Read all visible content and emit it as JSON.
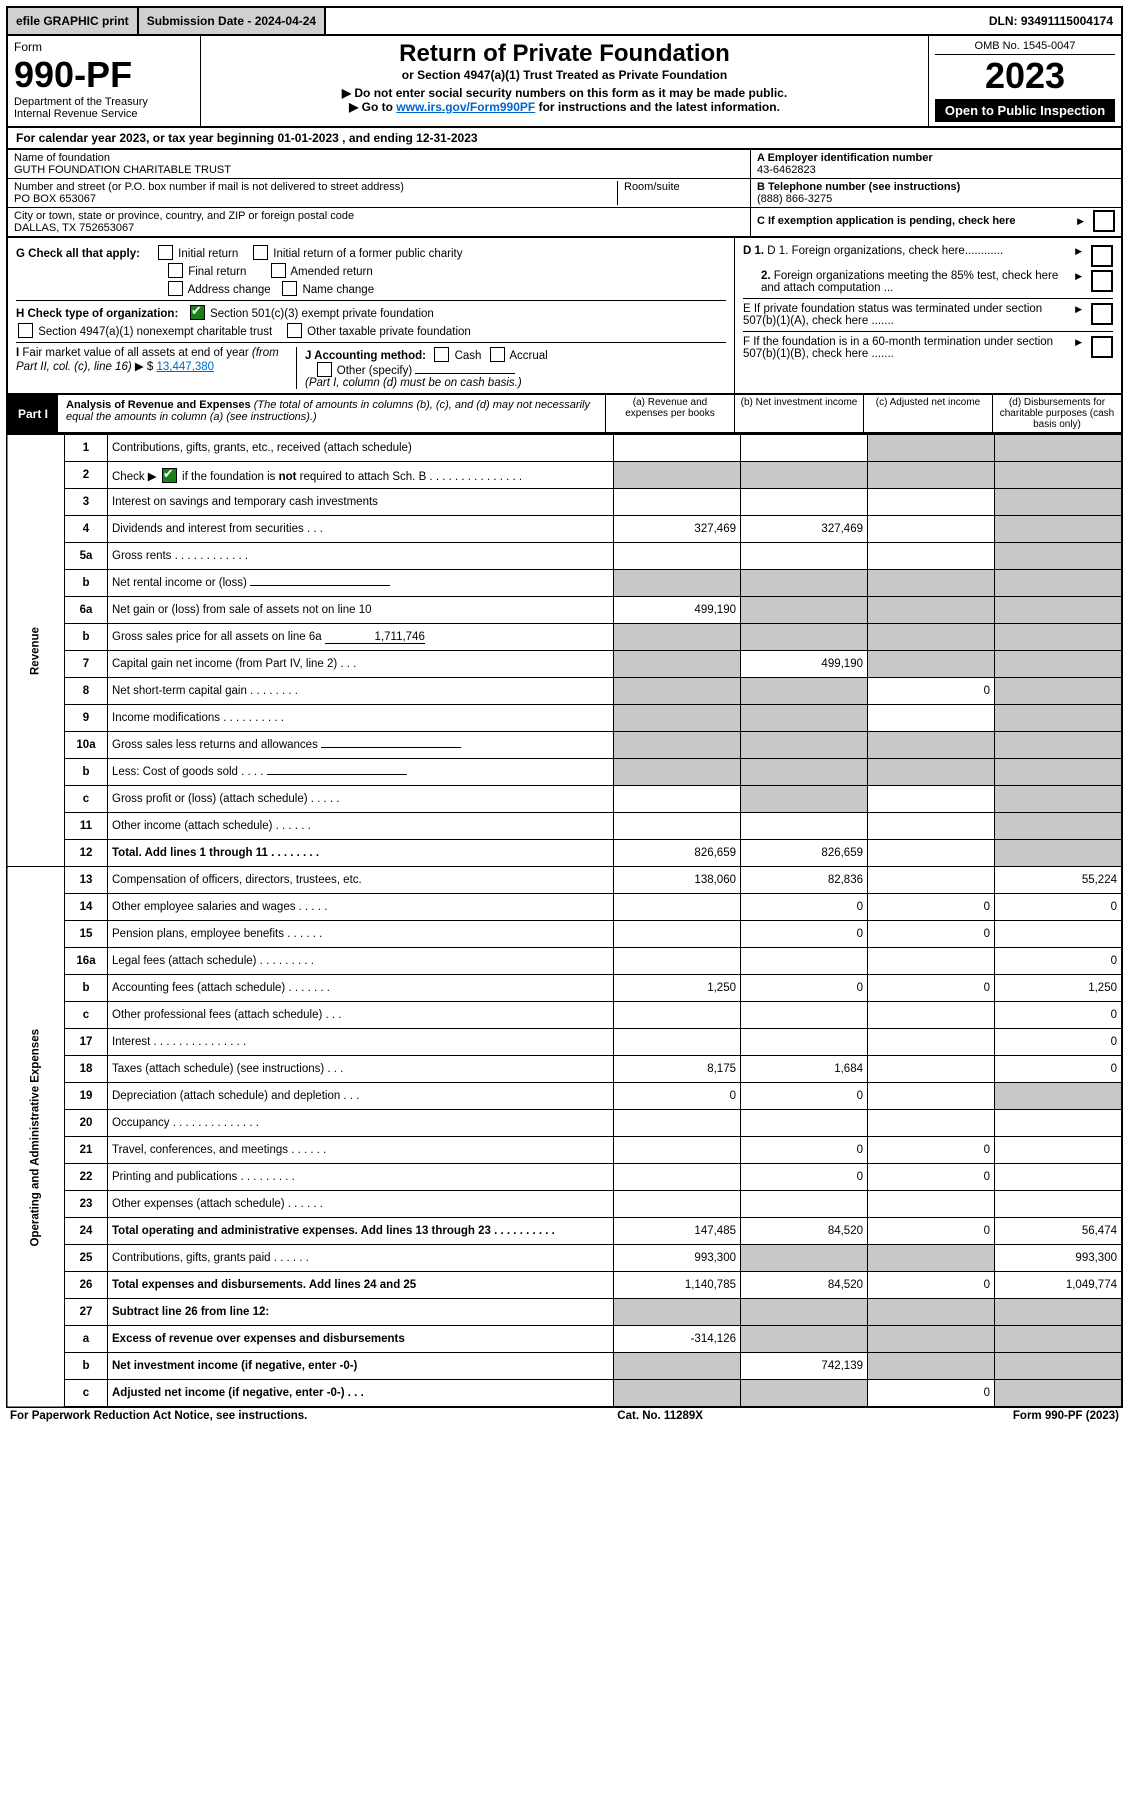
{
  "topbar": {
    "efile": "efile GRAPHIC print",
    "submission_label": "Submission Date - 2024-04-24",
    "dln": "DLN: 93491115004174"
  },
  "header": {
    "form_word": "Form",
    "form_no": "990-PF",
    "dept": "Department of the Treasury",
    "irs": "Internal Revenue Service",
    "title": "Return of Private Foundation",
    "subtitle": "or Section 4947(a)(1) Trust Treated as Private Foundation",
    "note1": "▶ Do not enter social security numbers on this form as it may be made public.",
    "note2_pre": "▶ Go to ",
    "note2_link": "www.irs.gov/Form990PF",
    "note2_post": " for instructions and the latest information.",
    "omb": "OMB No. 1545-0047",
    "year": "2023",
    "open": "Open to Public Inspection"
  },
  "calendar_line": "For calendar year 2023, or tax year beginning 01-01-2023                                    , and ending 12-31-2023",
  "id": {
    "name_lbl": "Name of foundation",
    "name": "GUTH FOUNDATION CHARITABLE TRUST",
    "addr_lbl": "Number and street (or P.O. box number if mail is not delivered to street address)",
    "room_lbl": "Room/suite",
    "addr": "PO BOX 653067",
    "city_lbl": "City or town, state or province, country, and ZIP or foreign postal code",
    "city": "DALLAS, TX  752653067",
    "a_lbl": "A Employer identification number",
    "a_val": "43-6462823",
    "b_lbl": "B Telephone number (see instructions)",
    "b_val": "(888) 866-3275",
    "c_lbl": "C If exemption application is pending, check here"
  },
  "opts": {
    "g": "G Check all that apply:",
    "g1": "Initial return",
    "g2": "Initial return of a former public charity",
    "g3": "Final return",
    "g4": "Amended return",
    "g5": "Address change",
    "g6": "Name change",
    "h": "H Check type of organization:",
    "h1": "Section 501(c)(3) exempt private foundation",
    "h2": "Section 4947(a)(1) nonexempt charitable trust",
    "h3": "Other taxable private foundation",
    "i": "I Fair market value of all assets at end of year (from Part II, col. (c), line 16) ▶ $ ",
    "i_val": "13,447,380",
    "j": "J Accounting method:",
    "j1": "Cash",
    "j2": "Accrual",
    "j3": "Other (specify)",
    "j_note": "(Part I, column (d) must be on cash basis.)",
    "d1": "D 1. Foreign organizations, check here............",
    "d2": "2. Foreign organizations meeting the 85% test, check here and attach computation ...",
    "e": "E  If private foundation status was terminated under section 507(b)(1)(A), check here .......",
    "f": "F  If the foundation is in a 60-month termination under section 507(b)(1)(B), check here ......."
  },
  "part1": {
    "tag": "Part I",
    "title": "Analysis of Revenue and Expenses",
    "title_note": " (The total of amounts in columns (b), (c), and (d) may not necessarily equal the amounts in column (a) (see instructions).)",
    "col_a": "(a)   Revenue and expenses per books",
    "col_b": "(b)   Net investment income",
    "col_c": "(c)   Adjusted net income",
    "col_d": "(d)  Disbursements for charitable purposes (cash basis only)"
  },
  "side": {
    "rev": "Revenue",
    "exp": "Operating and Administrative Expenses"
  },
  "rows": [
    {
      "n": "1",
      "d": "Contributions, gifts, grants, etc., received (attach schedule)",
      "a": "",
      "b": "",
      "c": "S",
      "dcol": "S"
    },
    {
      "n": "2",
      "d": "Check ▶ ☑ if the foundation is not required to attach Sch. B   .   .   .   .   .   .   .   .   .   .   .   .   .   .   .",
      "a": "S",
      "b": "S",
      "c": "S",
      "dcol": "S",
      "check2": true
    },
    {
      "n": "3",
      "d": "Interest on savings and temporary cash investments",
      "a": "",
      "b": "",
      "c": "",
      "dcol": "S"
    },
    {
      "n": "4",
      "d": "Dividends and interest from securities    .    .    .",
      "a": "327,469",
      "b": "327,469",
      "c": "",
      "dcol": "S"
    },
    {
      "n": "5a",
      "d": "Gross rents    .    .    .    .    .    .    .    .    .    .    .    .",
      "a": "",
      "b": "",
      "c": "",
      "dcol": "S"
    },
    {
      "n": "b",
      "d": "Net rental income or (loss)  ",
      "a": "S",
      "b": "S",
      "c": "S",
      "dcol": "S",
      "inline": true
    },
    {
      "n": "6a",
      "d": "Net gain or (loss) from sale of assets not on line 10",
      "a": "499,190",
      "b": "S",
      "c": "S",
      "dcol": "S"
    },
    {
      "n": "b",
      "d": "Gross sales price for all assets on line 6a",
      "a": "S",
      "b": "S",
      "c": "S",
      "dcol": "S",
      "inline_val": "1,711,746"
    },
    {
      "n": "7",
      "d": "Capital gain net income (from Part IV, line 2)    .    .    .",
      "a": "S",
      "b": "499,190",
      "c": "S",
      "dcol": "S"
    },
    {
      "n": "8",
      "d": "Net short-term capital gain   .   .   .   .   .   .   .   .",
      "a": "S",
      "b": "S",
      "c": "0",
      "dcol": "S"
    },
    {
      "n": "9",
      "d": "Income modifications  .   .   .   .   .   .   .   .   .   .",
      "a": "S",
      "b": "S",
      "c": "",
      "dcol": "S"
    },
    {
      "n": "10a",
      "d": "Gross sales less returns and allowances",
      "a": "S",
      "b": "S",
      "c": "S",
      "dcol": "S",
      "inline": true
    },
    {
      "n": "b",
      "d": "Less: Cost of goods sold     .    .    .    .",
      "a": "S",
      "b": "S",
      "c": "S",
      "dcol": "S",
      "inline": true
    },
    {
      "n": "c",
      "d": "Gross profit or (loss) (attach schedule)    .    .    .    .    .",
      "a": "",
      "b": "S",
      "c": "",
      "dcol": "S"
    },
    {
      "n": "11",
      "d": "Other income (attach schedule)    .    .    .    .    .    .",
      "a": "",
      "b": "",
      "c": "",
      "dcol": "S"
    },
    {
      "n": "12",
      "d": "Total. Add lines 1 through 11   .   .   .   .   .   .   .   .",
      "a": "826,659",
      "b": "826,659",
      "c": "",
      "dcol": "S",
      "bold": true
    },
    {
      "n": "13",
      "d": "Compensation of officers, directors, trustees, etc.",
      "a": "138,060",
      "b": "82,836",
      "c": "",
      "dcol": "55,224"
    },
    {
      "n": "14",
      "d": "Other employee salaries and wages    .    .    .    .    .",
      "a": "",
      "b": "0",
      "c": "0",
      "dcol": "0"
    },
    {
      "n": "15",
      "d": "Pension plans, employee benefits   .   .   .   .   .   .",
      "a": "",
      "b": "0",
      "c": "0",
      "dcol": ""
    },
    {
      "n": "16a",
      "d": "Legal fees (attach schedule)  .   .   .   .   .   .   .   .   .",
      "a": "",
      "b": "",
      "c": "",
      "dcol": "0"
    },
    {
      "n": "b",
      "d": "Accounting fees (attach schedule)  .   .   .   .   .   .   .",
      "a": "1,250",
      "b": "0",
      "c": "0",
      "dcol": "1,250"
    },
    {
      "n": "c",
      "d": "Other professional fees (attach schedule)    .    .    .",
      "a": "",
      "b": "",
      "c": "",
      "dcol": "0"
    },
    {
      "n": "17",
      "d": "Interest  .   .   .   .   .   .   .   .   .   .   .   .   .   .   .",
      "a": "",
      "b": "",
      "c": "",
      "dcol": "0"
    },
    {
      "n": "18",
      "d": "Taxes (attach schedule) (see instructions)    .    .    .",
      "a": "8,175",
      "b": "1,684",
      "c": "",
      "dcol": "0"
    },
    {
      "n": "19",
      "d": "Depreciation (attach schedule) and depletion    .    .    .",
      "a": "0",
      "b": "0",
      "c": "",
      "dcol": "S"
    },
    {
      "n": "20",
      "d": "Occupancy  .   .   .   .   .   .   .   .   .   .   .   .   .   .",
      "a": "",
      "b": "",
      "c": "",
      "dcol": ""
    },
    {
      "n": "21",
      "d": "Travel, conferences, and meetings  .   .   .   .   .   .",
      "a": "",
      "b": "0",
      "c": "0",
      "dcol": ""
    },
    {
      "n": "22",
      "d": "Printing and publications  .   .   .   .   .   .   .   .   .",
      "a": "",
      "b": "0",
      "c": "0",
      "dcol": ""
    },
    {
      "n": "23",
      "d": "Other expenses (attach schedule)   .   .   .   .   .   .",
      "a": "",
      "b": "",
      "c": "",
      "dcol": ""
    },
    {
      "n": "24",
      "d": "Total operating and administrative expenses. Add lines 13 through 23  .   .   .   .   .   .   .   .   .   .",
      "a": "147,485",
      "b": "84,520",
      "c": "0",
      "dcol": "56,474",
      "bold": true
    },
    {
      "n": "25",
      "d": "Contributions, gifts, grants paid    .    .    .    .    .    .",
      "a": "993,300",
      "b": "S",
      "c": "S",
      "dcol": "993,300"
    },
    {
      "n": "26",
      "d": "Total expenses and disbursements. Add lines 24 and 25",
      "a": "1,140,785",
      "b": "84,520",
      "c": "0",
      "dcol": "1,049,774",
      "bold": true
    },
    {
      "n": "27",
      "d": "Subtract line 26 from line 12:",
      "a": "S",
      "b": "S",
      "c": "S",
      "dcol": "S",
      "bold": true
    },
    {
      "n": "a",
      "d": "Excess of revenue over expenses and disbursements",
      "a": "-314,126",
      "b": "S",
      "c": "S",
      "dcol": "S",
      "bold": true
    },
    {
      "n": "b",
      "d": "Net investment income (if negative, enter -0-)",
      "a": "S",
      "b": "742,139",
      "c": "S",
      "dcol": "S",
      "bold": true
    },
    {
      "n": "c",
      "d": "Adjusted net income (if negative, enter -0-)    .    .    .",
      "a": "S",
      "b": "S",
      "c": "0",
      "dcol": "S",
      "bold": true
    }
  ],
  "footer": {
    "left": "For Paperwork Reduction Act Notice, see instructions.",
    "mid": "Cat. No. 11289X",
    "right": "Form 990-PF (2023)"
  }
}
